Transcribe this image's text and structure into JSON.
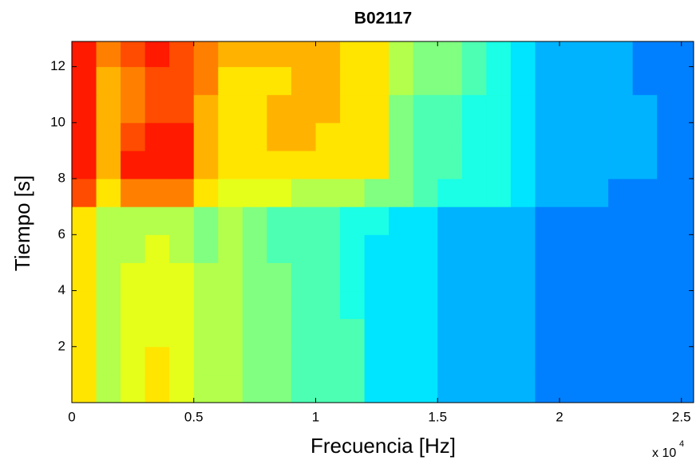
{
  "chart_data": {
    "type": "heatmap",
    "title": "B02117",
    "xlabel": "Frecuencia [Hz]",
    "ylabel": "Tiempo [s]",
    "x_multiplier": {
      "base": "x 10",
      "exponent": "4"
    },
    "colormap": "jet",
    "clim": [
      0,
      10
    ],
    "xlim": [
      0,
      25500
    ],
    "ylim": [
      0,
      12.9
    ],
    "xticks": [
      0,
      {
        "value": 5000,
        "label": "0.5"
      },
      {
        "value": 10000,
        "label": "1"
      },
      {
        "value": 15000,
        "label": "1.5"
      },
      {
        "value": 20000,
        "label": "2"
      },
      {
        "value": 25000,
        "label": "2.5"
      }
    ],
    "yticks": [
      2,
      4,
      6,
      8,
      10,
      12
    ],
    "x_edges": [
      0,
      1000,
      2000,
      3000,
      4000,
      5000,
      6000,
      7000,
      8000,
      9000,
      10000,
      11000,
      12000,
      13000,
      14000,
      15000,
      16000,
      17000,
      18000,
      19000,
      20000,
      21000,
      22000,
      23000,
      24000,
      25000,
      25500
    ],
    "y_edges": [
      0,
      1,
      2,
      3,
      4,
      5,
      6,
      7,
      8,
      9,
      10,
      11,
      12,
      12.9
    ],
    "values": [
      [
        6.5,
        5.5,
        6,
        6.5,
        6,
        5.5,
        5.5,
        5,
        5,
        4.5,
        4.5,
        4.5,
        3.5,
        3.5,
        3.5,
        3,
        3,
        3,
        3,
        2.5,
        2.5,
        2.5,
        2.5,
        2.5,
        2.5,
        2.5
      ],
      [
        6.5,
        5.5,
        6,
        6.5,
        6,
        5.5,
        5.5,
        5,
        5,
        4.5,
        4.5,
        4.5,
        3.5,
        3.5,
        3.5,
        3,
        3,
        3,
        3,
        2.5,
        2.5,
        2.5,
        2.5,
        2.5,
        2.5,
        2.5
      ],
      [
        6.5,
        5.5,
        6,
        6,
        6,
        5.5,
        5.5,
        5,
        5,
        4.5,
        4.5,
        4.5,
        3.5,
        3.5,
        3.5,
        3,
        3,
        3,
        3,
        2.5,
        2.5,
        2.5,
        2.5,
        2.5,
        2.5,
        2.5
      ],
      [
        6.5,
        5.5,
        6,
        6,
        6,
        5.5,
        5.5,
        5,
        5,
        4.5,
        4.5,
        4,
        3.5,
        3.5,
        3.5,
        3,
        3,
        3,
        3,
        2.5,
        2.5,
        2.5,
        2.5,
        2.5,
        2.5,
        2.5
      ],
      [
        6.5,
        5.5,
        6,
        6,
        6,
        5.5,
        5.5,
        5,
        5,
        4.5,
        4.5,
        4,
        3.5,
        3.5,
        3.5,
        3,
        3,
        3,
        3,
        2.5,
        2.5,
        2.5,
        2.5,
        2.5,
        2.5,
        2.5
      ],
      [
        6.5,
        5.5,
        5.5,
        6,
        5.5,
        5,
        5.5,
        5,
        4.5,
        4.5,
        4.5,
        4,
        3.5,
        3.5,
        3.5,
        3,
        3,
        3,
        3,
        2.5,
        2.5,
        2.5,
        2.5,
        2.5,
        2.5,
        2.5
      ],
      [
        6.5,
        5.5,
        5.5,
        5.5,
        5.5,
        5,
        5.5,
        5,
        4.5,
        4.5,
        4.5,
        4,
        4,
        3.5,
        3.5,
        3,
        3,
        3,
        3,
        2.5,
        2.5,
        2.5,
        2.5,
        2.5,
        2.5,
        2.5
      ],
      [
        8,
        6.5,
        7.5,
        7.5,
        7.5,
        6.5,
        6,
        6,
        6,
        5.5,
        5.5,
        5.5,
        5,
        5,
        4.5,
        4,
        4,
        4,
        3.5,
        3,
        3,
        3,
        2.5,
        2.5,
        2.5,
        2.5
      ],
      [
        8.5,
        7,
        8.5,
        8.5,
        8.5,
        7,
        6.5,
        6.5,
        6.5,
        6.5,
        6.5,
        6.5,
        6.5,
        5,
        4.5,
        4.5,
        4,
        4,
        3.5,
        3,
        3,
        3,
        3,
        3,
        2.5,
        2.5
      ],
      [
        8.5,
        7,
        8,
        8.5,
        8.5,
        7,
        6.5,
        6.5,
        7,
        7,
        6.5,
        6.5,
        6.5,
        5,
        4.5,
        4.5,
        4,
        4,
        3.5,
        3,
        3,
        3,
        3,
        3,
        2.5,
        2.5
      ],
      [
        8.5,
        7,
        7.5,
        8,
        8,
        7,
        6.5,
        6.5,
        7,
        7,
        7,
        6.5,
        6.5,
        5,
        4.5,
        4.5,
        4,
        4,
        3.5,
        3,
        3,
        3,
        3,
        3,
        2.5,
        2.5
      ],
      [
        8.5,
        7,
        7.5,
        8,
        8,
        7.5,
        6.5,
        6.5,
        6.5,
        7,
        7,
        6.5,
        6.5,
        5.5,
        5,
        5,
        4.5,
        4,
        3.5,
        3,
        3,
        3,
        3,
        2.5,
        2.5,
        2.5
      ],
      [
        8.5,
        7.5,
        8,
        8.5,
        8,
        7.5,
        7,
        7,
        7,
        7,
        7,
        6.5,
        6.5,
        5.5,
        5,
        5,
        4.5,
        4,
        3.5,
        3,
        3,
        3,
        3,
        2.5,
        2.5,
        2.5
      ]
    ]
  }
}
